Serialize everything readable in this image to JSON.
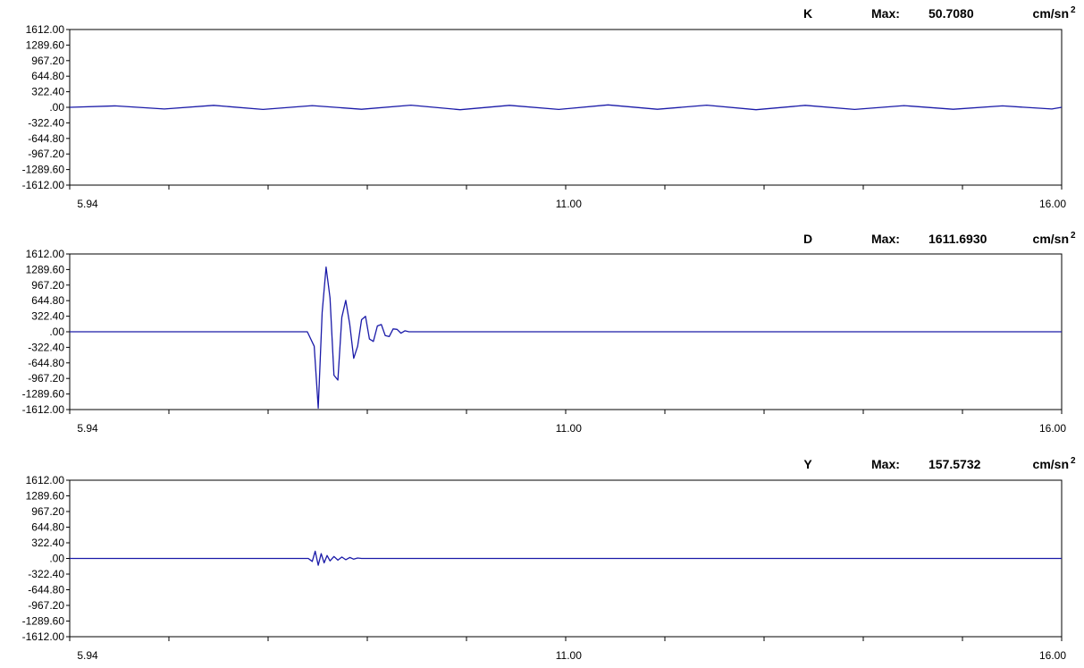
{
  "chart_data": [
    {
      "type": "line",
      "channel": "K",
      "max_label": "Max:",
      "max_value": "50.7080",
      "unit": "cm/sn",
      "unit_exp": "2",
      "yticks": [
        "1612.00",
        "1289.60",
        "967.20",
        "644.80",
        "322.40",
        ".00",
        "-322.40",
        "-644.80",
        "-967.20",
        "-1289.60",
        "-1612.00"
      ],
      "xticks": [
        "5.94",
        "11.00",
        "16.00"
      ],
      "xlim": [
        5.94,
        16.0
      ],
      "ylim": [
        -1612.0,
        1612.0
      ],
      "color": "#1a1aa8",
      "series": [
        {
          "x": [
            5.94,
            6.4,
            6.9,
            7.4,
            7.9,
            8.4,
            8.9,
            9.4,
            9.9,
            10.4,
            10.9,
            11.4,
            11.9,
            12.4,
            12.9,
            13.4,
            13.9,
            14.4,
            14.9,
            15.4,
            15.9,
            16.0
          ],
          "y": [
            0,
            30,
            -35,
            40,
            -45,
            35,
            -40,
            45,
            -50,
            40,
            -45,
            50,
            -40,
            45,
            -50,
            40,
            -45,
            35,
            -40,
            30,
            -35,
            0
          ]
        }
      ]
    },
    {
      "type": "line",
      "channel": "D",
      "max_label": "Max:",
      "max_value": "1611.6930",
      "unit": "cm/sn",
      "unit_exp": "2",
      "yticks": [
        "1612.00",
        "1289.60",
        "967.20",
        "644.80",
        "322.40",
        ".00",
        "-322.40",
        "-644.80",
        "-967.20",
        "-1289.60",
        "-1612.00"
      ],
      "xticks": [
        "5.94",
        "11.00",
        "16.00"
      ],
      "xlim": [
        5.94,
        16.0
      ],
      "ylim": [
        -1612.0,
        1612.0
      ],
      "color": "#1a1aa8",
      "series": [
        {
          "x": [
            5.94,
            8.35,
            8.42,
            8.46,
            8.5,
            8.54,
            8.58,
            8.62,
            8.66,
            8.7,
            8.74,
            8.78,
            8.82,
            8.86,
            8.9,
            8.94,
            8.98,
            9.02,
            9.06,
            9.1,
            9.14,
            9.18,
            9.22,
            9.26,
            9.3,
            9.34,
            9.38,
            16.0
          ],
          "y": [
            0,
            0,
            -300,
            -1580,
            400,
            1340,
            700,
            -900,
            -1000,
            300,
            650,
            150,
            -550,
            -300,
            250,
            320,
            -150,
            -200,
            120,
            150,
            -80,
            -100,
            60,
            50,
            -30,
            20,
            0,
            0
          ]
        }
      ]
    },
    {
      "type": "line",
      "channel": "Y",
      "max_label": "Max:",
      "max_value": "157.5732",
      "unit": "cm/sn",
      "unit_exp": "2",
      "yticks": [
        "1612.00",
        "1289.60",
        "967.20",
        "644.80",
        "322.40",
        ".00",
        "-322.40",
        "-644.80",
        "-967.20",
        "-1289.60",
        "-1612.00"
      ],
      "xticks": [
        "5.94",
        "11.00",
        "16.00"
      ],
      "xlim": [
        5.94,
        16.0
      ],
      "ylim": [
        -1612.0,
        1612.0
      ],
      "color": "#1a1aa8",
      "series": [
        {
          "x": [
            5.94,
            8.36,
            8.4,
            8.43,
            8.46,
            8.49,
            8.52,
            8.55,
            8.58,
            8.62,
            8.66,
            8.7,
            8.74,
            8.78,
            8.82,
            8.86,
            8.9,
            16.0
          ],
          "y": [
            0,
            0,
            -60,
            150,
            -140,
            100,
            -90,
            60,
            -50,
            40,
            -35,
            30,
            -25,
            20,
            -15,
            10,
            0,
            0
          ]
        }
      ]
    }
  ]
}
